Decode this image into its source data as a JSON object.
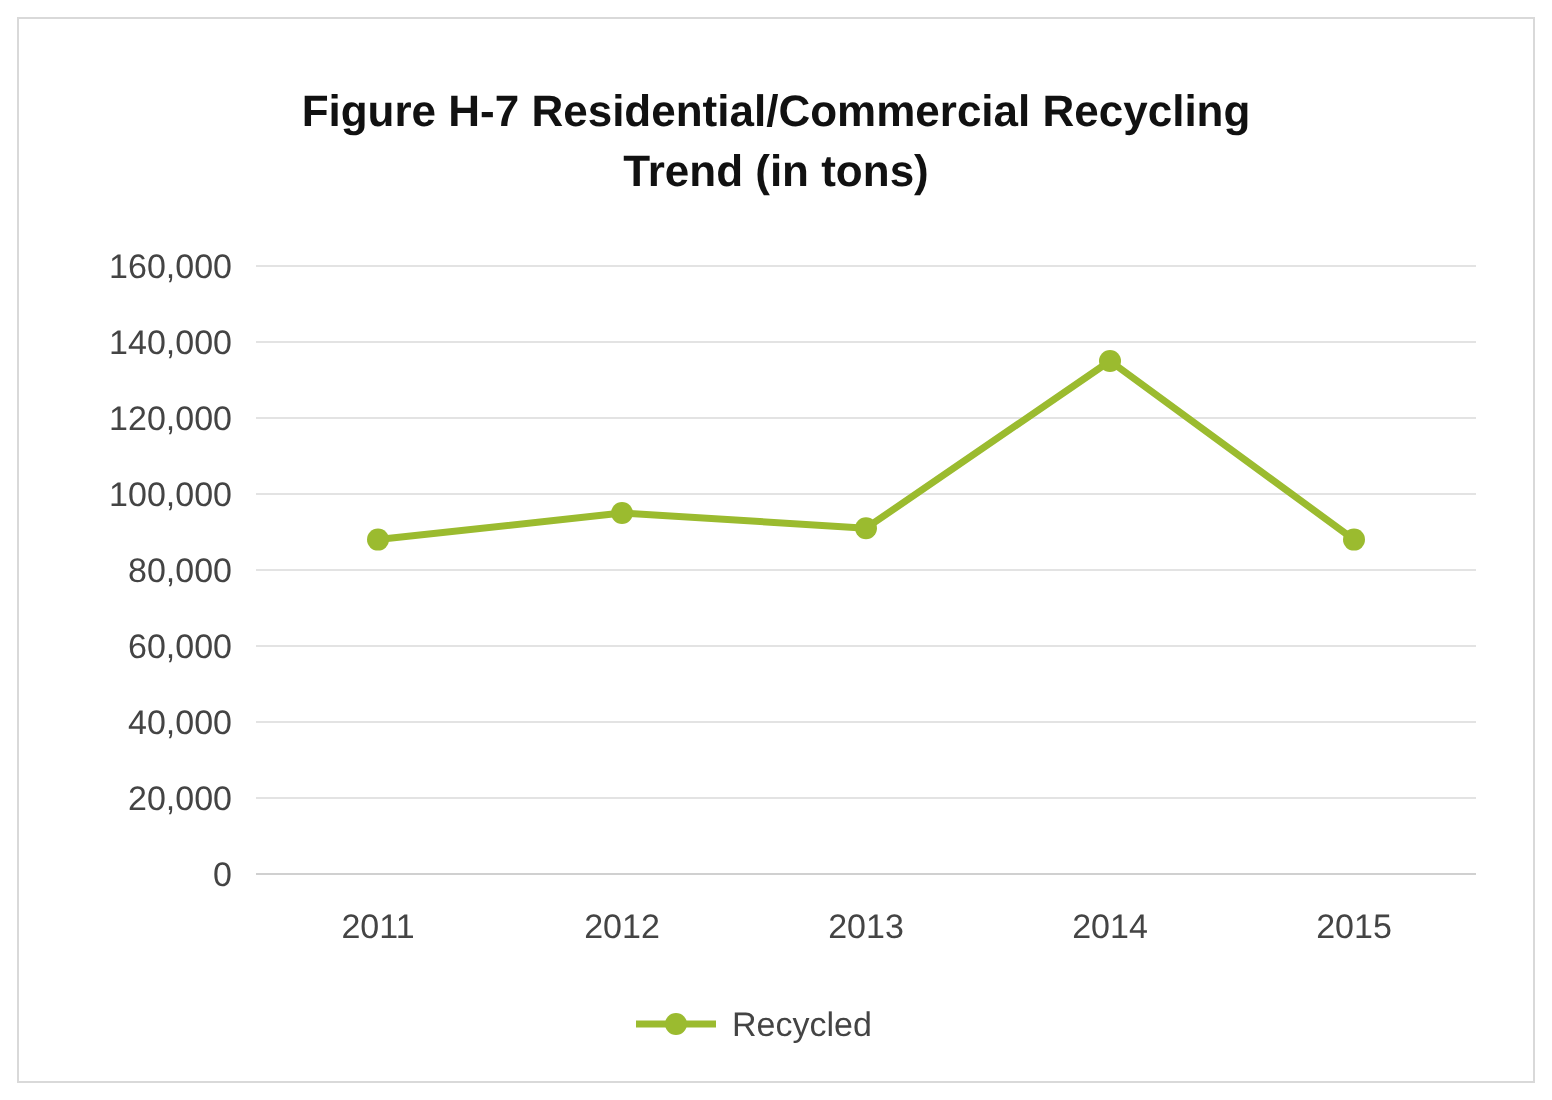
{
  "chart_data": {
    "type": "line",
    "title": "Figure H-7 Residential/Commercial Recycling Trend (in tons)",
    "categories": [
      "2011",
      "2012",
      "2013",
      "2014",
      "2015"
    ],
    "series": [
      {
        "name": "Recycled",
        "color": "#9bbb2f",
        "values": [
          88000,
          95000,
          91000,
          135000,
          88000
        ]
      }
    ],
    "ylim": [
      0,
      160000
    ],
    "yticks": [
      {
        "value": 0,
        "label": "0"
      },
      {
        "value": 20000,
        "label": "20,000"
      },
      {
        "value": 40000,
        "label": "40,000"
      },
      {
        "value": 60000,
        "label": "60,000"
      },
      {
        "value": 80000,
        "label": "80,000"
      },
      {
        "value": 100000,
        "label": "100,000"
      },
      {
        "value": 120000,
        "label": "120,000"
      },
      {
        "value": 140000,
        "label": "140,000"
      },
      {
        "value": 160000,
        "label": "160,000"
      }
    ],
    "grid": "y",
    "legend": "bottom",
    "marker": "circle"
  }
}
